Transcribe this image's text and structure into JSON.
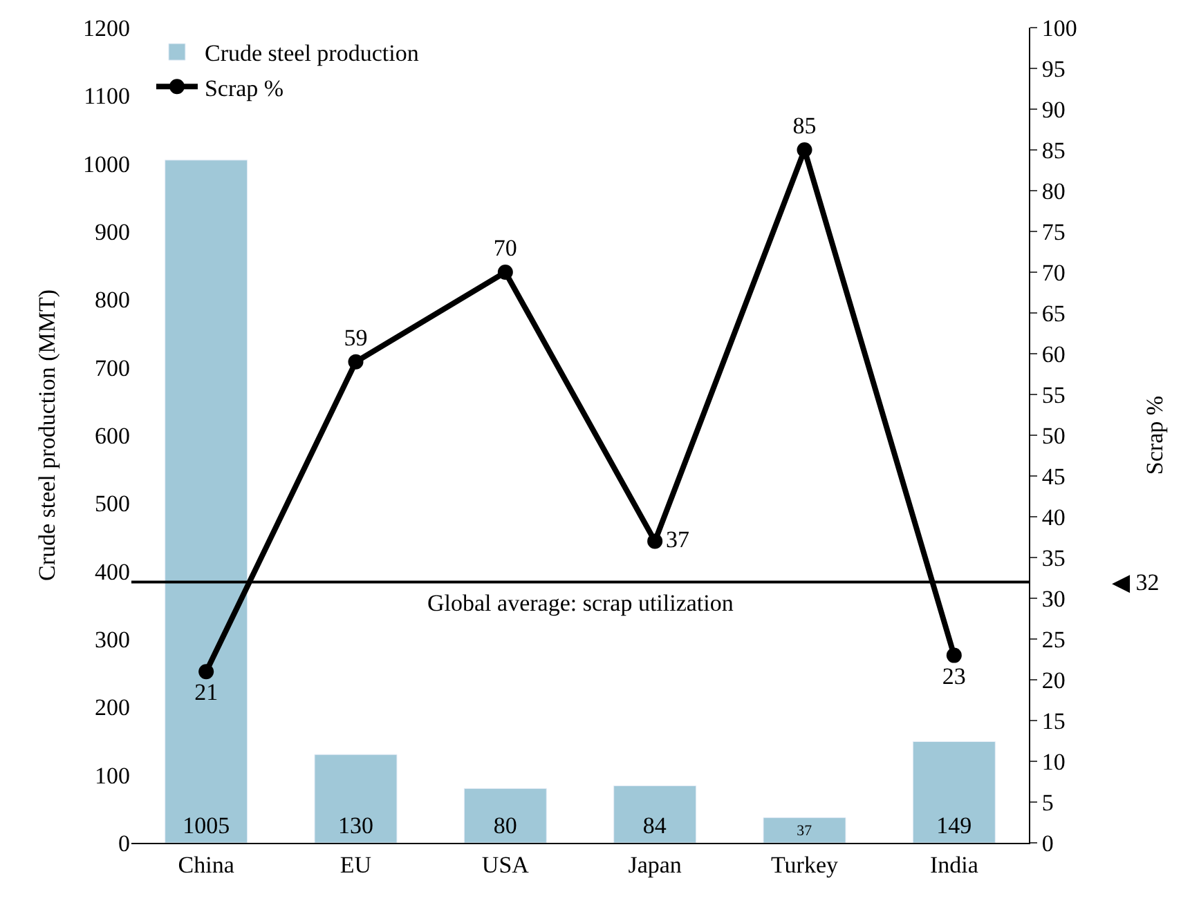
{
  "chart_data": {
    "type": "bar",
    "ylabel": "Crude steel production (MMT)",
    "y2label": "Scrap %",
    "categories": [
      "China",
      "EU",
      "USA",
      "Japan",
      "Turkey",
      "India"
    ],
    "series": [
      {
        "name": "Crude steel production",
        "color": "#a0c8d8",
        "values": [
          1005,
          130,
          80,
          84,
          37,
          149
        ]
      },
      {
        "name": "Scrap %",
        "type": "line",
        "axis": "y2",
        "color": "#000000",
        "marker": "circle",
        "values": [
          21,
          59,
          70,
          37,
          85,
          23
        ]
      }
    ],
    "ylim": [
      0,
      1200
    ],
    "yticks": [
      0,
      100,
      200,
      300,
      400,
      500,
      600,
      700,
      800,
      900,
      1000,
      1100,
      1200
    ],
    "y2lim": [
      0,
      100
    ],
    "y2ticks": [
      0,
      5,
      10,
      15,
      20,
      25,
      30,
      35,
      40,
      45,
      50,
      55,
      60,
      65,
      70,
      75,
      80,
      85,
      90,
      95,
      100
    ],
    "ref_lines": [
      {
        "axis": "y2",
        "value": 32,
        "label": "Global average: scrap utilization",
        "color": "#000000"
      }
    ],
    "annotations": [
      "◀ 32"
    ],
    "data_labels": true,
    "legend": "top left"
  }
}
